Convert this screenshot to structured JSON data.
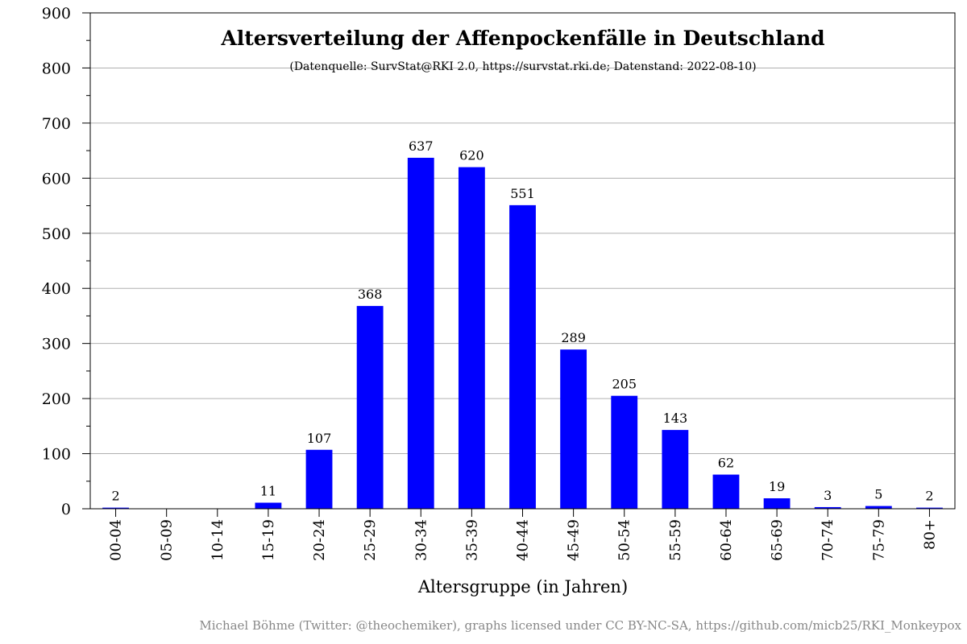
{
  "chart_data": {
    "type": "bar",
    "title": "Altersverteilung der Affenpockenfälle in Deutschland",
    "subtitle": "(Datenquelle: SurvStat@RKI 2.0, https://survstat.rki.de; Datenstand: 2022-08-10)",
    "xlabel": "Altersgruppe (in Jahren)",
    "ylabel": "",
    "categories": [
      "00-04",
      "05-09",
      "10-14",
      "15-19",
      "20-24",
      "25-29",
      "30-34",
      "35-39",
      "40-44",
      "45-49",
      "50-54",
      "55-59",
      "60-64",
      "65-69",
      "70-74",
      "75-79",
      "80+"
    ],
    "values": [
      2,
      null,
      null,
      11,
      107,
      368,
      637,
      620,
      551,
      289,
      205,
      143,
      62,
      19,
      3,
      5,
      2
    ],
    "data_labels": [
      "2",
      "",
      "",
      "11",
      "107",
      "368",
      "637",
      "620",
      "551",
      "289",
      "205",
      "143",
      "62",
      "19",
      "3",
      "5",
      "2"
    ],
    "ylim": [
      0,
      900
    ],
    "yticks": [
      0,
      100,
      200,
      300,
      400,
      500,
      600,
      700,
      800,
      900
    ],
    "ytick_labels": [
      "0",
      "100",
      "200",
      "300",
      "400",
      "500",
      "600",
      "700",
      "800",
      "900"
    ],
    "grid": "horizontal",
    "bar_color": "#0000ff"
  },
  "credit": "Michael Böhme (Twitter: @theochemiker), graphs licensed under CC BY-NC-SA, https://github.com/micb25/RKI_Monkeypox"
}
